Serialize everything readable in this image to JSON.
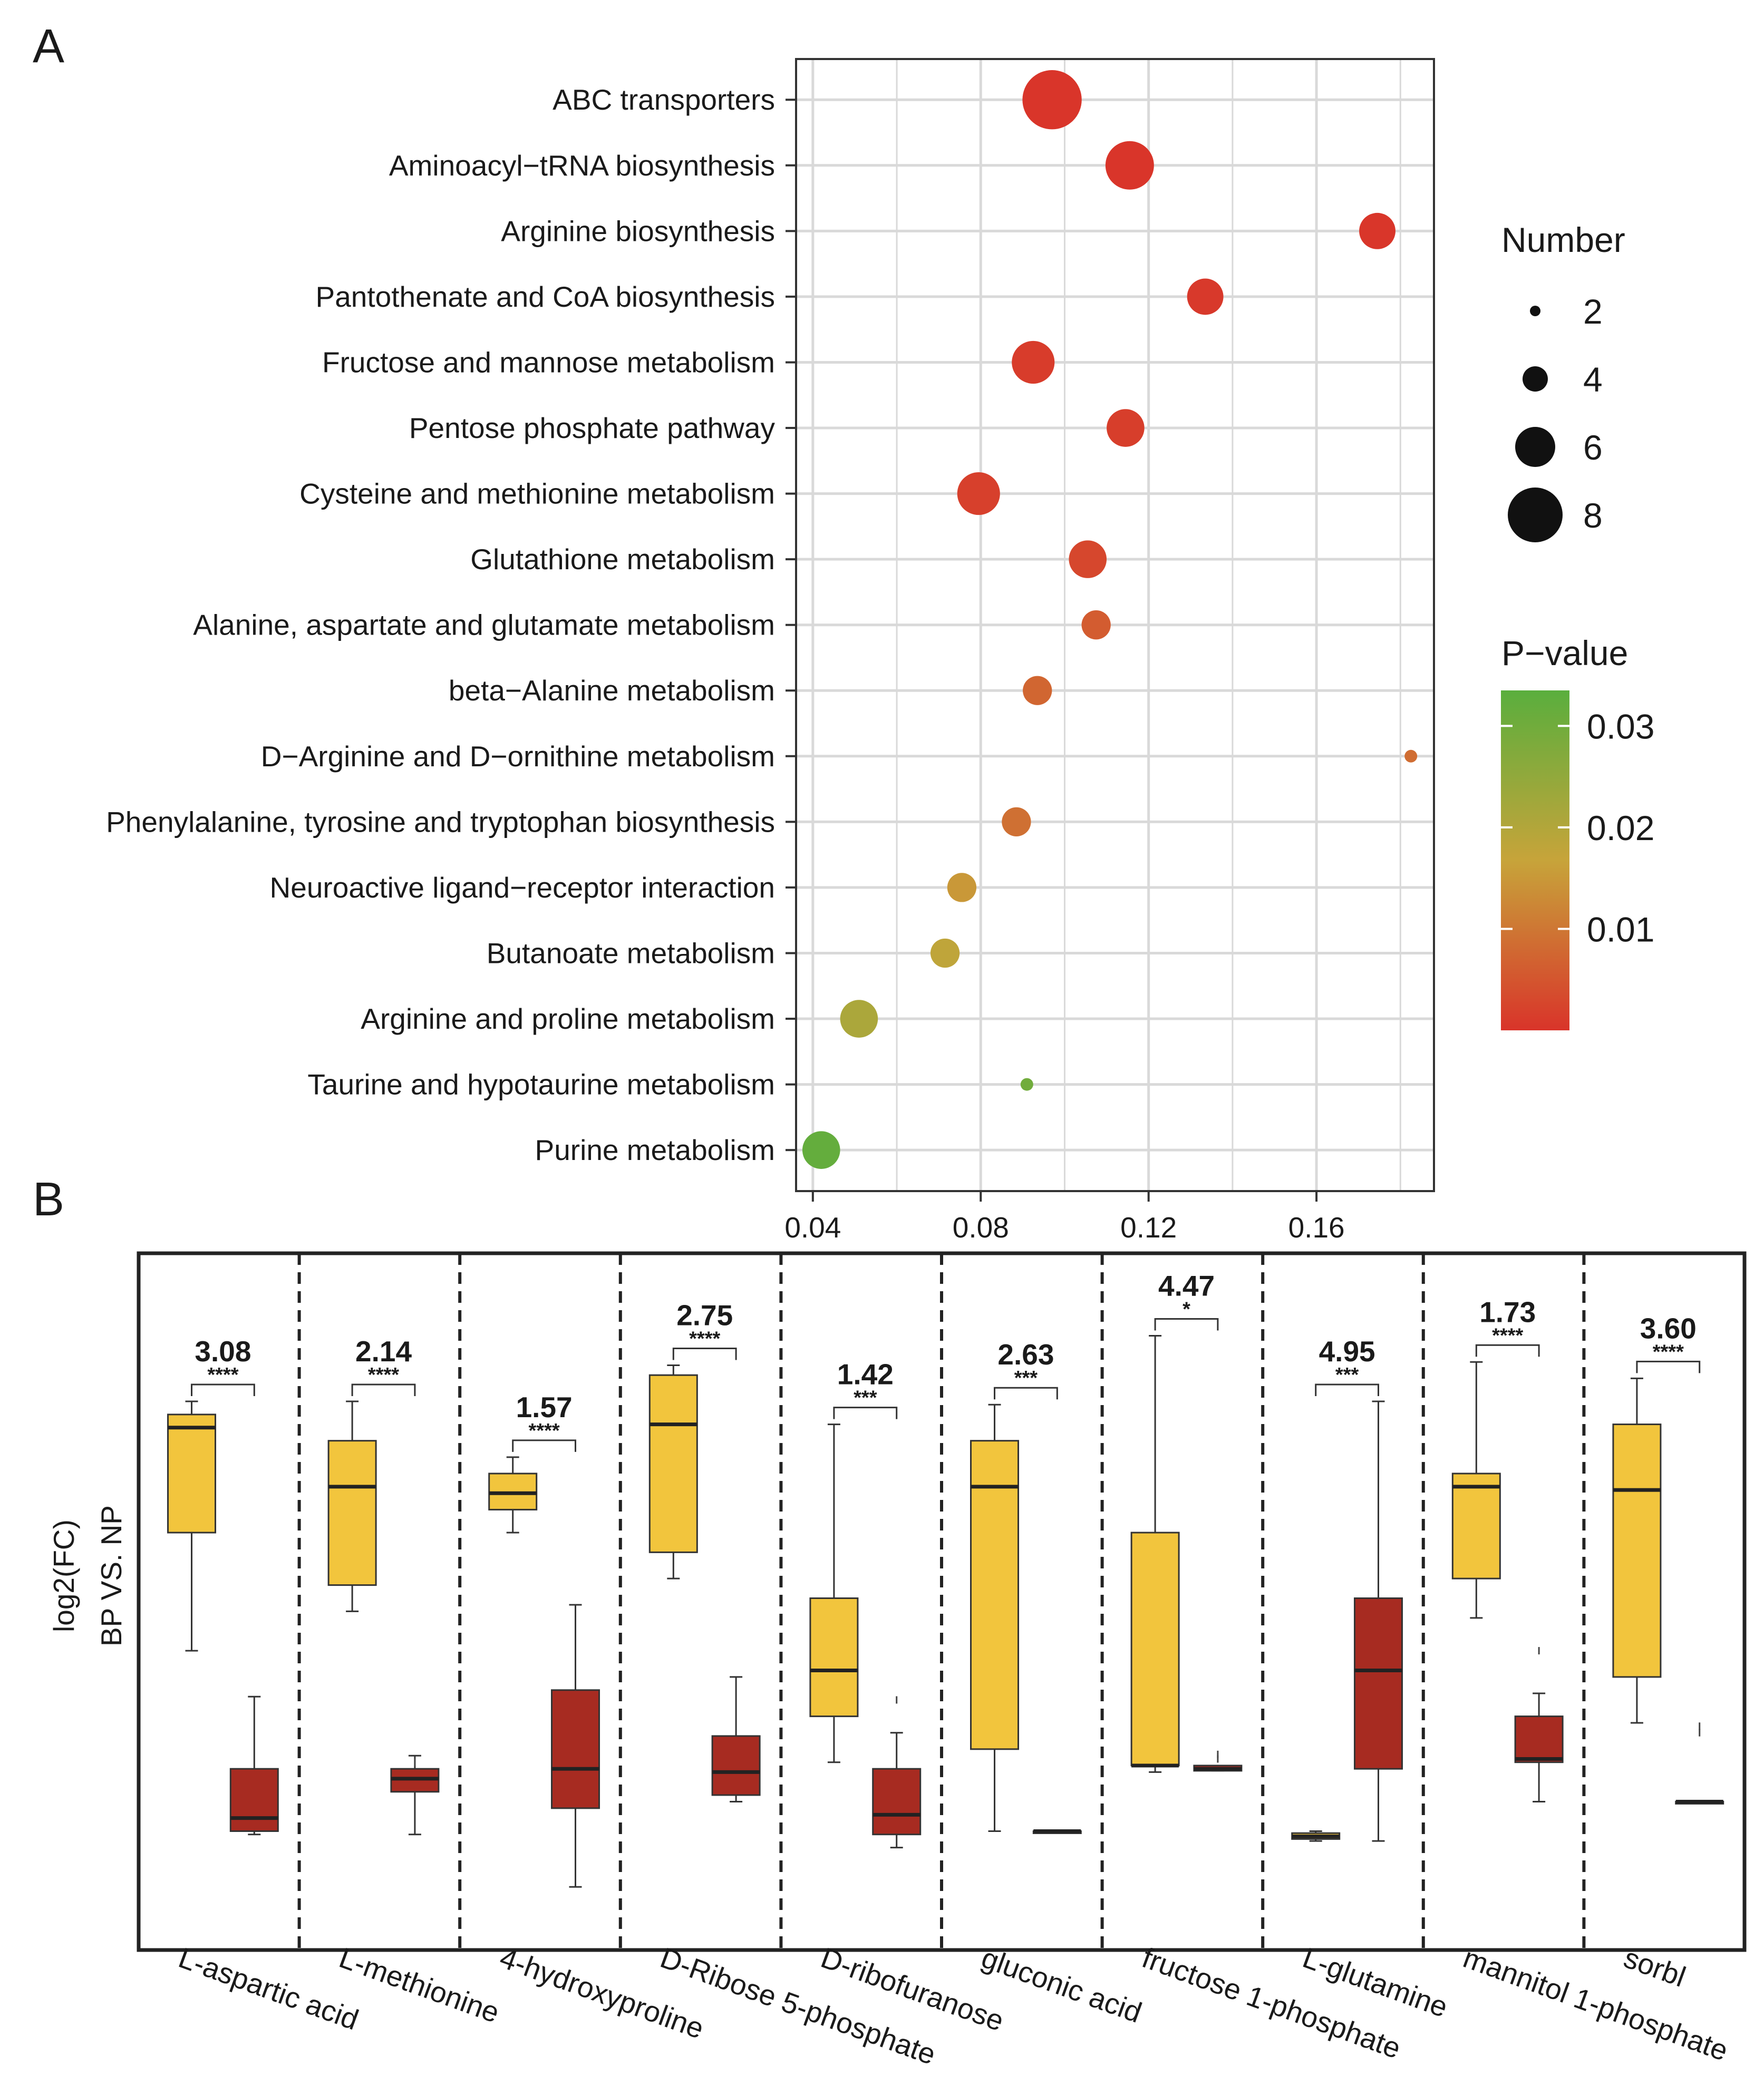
{
  "panels": {
    "a_label": "A",
    "b_label": "B"
  },
  "colors": {
    "grid": "#d9d9d9",
    "frame": "#333333",
    "pvalue_high": "#5aae3d",
    "pvalue_mid": "#c7a43a",
    "pvalue_low": "#d9342a",
    "bp_box": "#f2c53d",
    "np_box": "#a72b21"
  },
  "chart_data": [
    {
      "type": "scatter",
      "subtype": "bubble",
      "title": "",
      "xlabel": "",
      "ylabel": "",
      "xlim": [
        0.036,
        0.188
      ],
      "xticks": [
        0.04,
        0.08,
        0.12,
        0.16
      ],
      "xtick_labels": [
        "0.04",
        "0.08",
        "0.12",
        "0.16"
      ],
      "grid": true,
      "points": [
        {
          "pathway": "ABC transporters",
          "x": 0.097,
          "number": 8,
          "pvalue": 0.0001
        },
        {
          "pathway": "Aminoacyl−tRNA biosynthesis",
          "x": 0.1155,
          "number": 6.5,
          "pvalue": 0.0002
        },
        {
          "pathway": "Arginine biosynthesis",
          "x": 0.1745,
          "number": 4.8,
          "pvalue": 0.0003
        },
        {
          "pathway": "Pantothenate and CoA biosynthesis",
          "x": 0.1335,
          "number": 4.8,
          "pvalue": 0.0008
        },
        {
          "pathway": "Fructose and mannose metabolism",
          "x": 0.0925,
          "number": 5.7,
          "pvalue": 0.0012
        },
        {
          "pathway": "Pentose phosphate pathway",
          "x": 0.1145,
          "number": 5,
          "pvalue": 0.0015
        },
        {
          "pathway": "Cysteine and methionine metabolism",
          "x": 0.0795,
          "number": 5.7,
          "pvalue": 0.0018
        },
        {
          "pathway": "Glutathione metabolism",
          "x": 0.1055,
          "number": 5,
          "pvalue": 0.0028
        },
        {
          "pathway": "Alanine, aspartate and glutamate metabolism",
          "x": 0.1075,
          "number": 3.8,
          "pvalue": 0.006
        },
        {
          "pathway": "beta−Alanine metabolism",
          "x": 0.0935,
          "number": 3.8,
          "pvalue": 0.0075
        },
        {
          "pathway": "D−Arginine and D−ornithine metabolism",
          "x": 0.1825,
          "number": 1.5,
          "pvalue": 0.0085
        },
        {
          "pathway": "Phenylalanine, tyrosine and tryptophan biosynthesis",
          "x": 0.0885,
          "number": 3.8,
          "pvalue": 0.009
        },
        {
          "pathway": "Neuroactive ligand−receptor interaction",
          "x": 0.0755,
          "number": 3.8,
          "pvalue": 0.015
        },
        {
          "pathway": "Butanoate metabolism",
          "x": 0.0715,
          "number": 3.8,
          "pvalue": 0.018
        },
        {
          "pathway": "Arginine and proline metabolism",
          "x": 0.051,
          "number": 5,
          "pvalue": 0.021
        },
        {
          "pathway": "Taurine and hypotaurine metabolism",
          "x": 0.091,
          "number": 1.5,
          "pvalue": 0.03
        },
        {
          "pathway": "Purine metabolism",
          "x": 0.042,
          "number": 5,
          "pvalue": 0.032
        }
      ],
      "size_legend": {
        "title": "Number",
        "values": [
          2,
          4,
          6,
          8
        ],
        "labels": [
          "2",
          "4",
          "6",
          "8"
        ]
      },
      "color_legend": {
        "title": "P−value",
        "range": [
          0,
          0.0335
        ],
        "ticks": [
          0.03,
          0.02,
          0.01
        ],
        "tick_labels": [
          "0.03",
          "0.02",
          "0.01"
        ]
      }
    },
    {
      "type": "box",
      "ylabel_line1": "log2(FC)",
      "ylabel_line2": "BP VS. NP",
      "ylim": [
        0,
        1
      ],
      "y_units": "normalized (no tick labels shown)",
      "series_names": [
        "BP",
        "NP"
      ],
      "groups": [
        {
          "name": "L-aspartic acid",
          "fc": "3.08",
          "sig": "****",
          "bp": {
            "min": 0.42,
            "q1": 0.6,
            "median": 0.76,
            "q3": 0.78,
            "max": 0.8
          },
          "np": {
            "min": 0.14,
            "q1": 0.145,
            "median": 0.165,
            "q3": 0.24,
            "max": 0.35
          }
        },
        {
          "name": "L-methionine",
          "fc": "2.14",
          "sig": "****",
          "bp": {
            "min": 0.48,
            "q1": 0.52,
            "median": 0.67,
            "q3": 0.74,
            "max": 0.8
          },
          "np": {
            "min": 0.14,
            "q1": 0.205,
            "median": 0.225,
            "q3": 0.24,
            "max": 0.26
          },
          "np_outliers": [
            0.25
          ]
        },
        {
          "name": "4-hydroxyproline",
          "fc": "1.57",
          "sig": "****",
          "bp": {
            "min": 0.6,
            "q1": 0.635,
            "median": 0.66,
            "q3": 0.69,
            "max": 0.715
          },
          "np": {
            "min": 0.06,
            "q1": 0.18,
            "median": 0.24,
            "q3": 0.36,
            "max": 0.49
          }
        },
        {
          "name": "D-Ribose 5-phosphate",
          "fc": "2.75",
          "sig": "****",
          "bp": {
            "min": 0.53,
            "q1": 0.57,
            "median": 0.765,
            "q3": 0.84,
            "max": 0.855
          },
          "np": {
            "min": 0.19,
            "q1": 0.2,
            "median": 0.235,
            "q3": 0.29,
            "max": 0.38
          }
        },
        {
          "name": "D-ribofuranose",
          "fc": "1.42",
          "sig": "***",
          "bp": {
            "min": 0.25,
            "q1": 0.32,
            "median": 0.39,
            "q3": 0.5,
            "max": 0.765
          },
          "np": {
            "min": 0.12,
            "q1": 0.14,
            "median": 0.17,
            "q3": 0.24,
            "max": 0.295
          },
          "np_outliers": [
            0.345
          ]
        },
        {
          "name": "gluconic acid",
          "fc": "2.63",
          "sig": "***",
          "bp": {
            "min": 0.145,
            "q1": 0.27,
            "median": 0.67,
            "q3": 0.74,
            "max": 0.795
          },
          "np": {
            "min": 0.145,
            "q1": 0.145,
            "median": 0.145,
            "q3": 0.145,
            "max": 0.145
          }
        },
        {
          "name": "fructose 1-phosphate",
          "fc": "4.47",
          "sig": "*",
          "bp": {
            "min": 0.235,
            "q1": 0.245,
            "median": 0.245,
            "q3": 0.6,
            "max": 0.9
          },
          "np": {
            "min": 0.237,
            "q1": 0.237,
            "median": 0.24,
            "q3": 0.245,
            "max": 0.245
          },
          "np_outliers": [
            0.255,
            0.262
          ]
        },
        {
          "name": "L-glutamine",
          "fc": "4.95",
          "sig": "***",
          "bp": {
            "min": 0.13,
            "q1": 0.133,
            "median": 0.137,
            "q3": 0.142,
            "max": 0.145
          },
          "np": {
            "min": 0.13,
            "q1": 0.24,
            "median": 0.39,
            "q3": 0.5,
            "max": 0.8
          }
        },
        {
          "name": "mannitol 1-phosphate",
          "fc": "1.73",
          "sig": "****",
          "bp": {
            "min": 0.47,
            "q1": 0.53,
            "median": 0.67,
            "q3": 0.69,
            "max": 0.86
          },
          "np": {
            "min": 0.19,
            "q1": 0.25,
            "median": 0.255,
            "q3": 0.32,
            "max": 0.355
          },
          "np_outliers": [
            0.42
          ]
        },
        {
          "name": "sorbl",
          "fc": "3.60",
          "sig": "****",
          "bp": {
            "min": 0.31,
            "q1": 0.38,
            "median": 0.665,
            "q3": 0.765,
            "max": 0.835
          },
          "np": {
            "min": 0.19,
            "q1": 0.19,
            "median": 0.19,
            "q3": 0.19,
            "max": 0.19
          },
          "np_outliers": [
            0.295,
            0.305
          ]
        }
      ]
    }
  ]
}
